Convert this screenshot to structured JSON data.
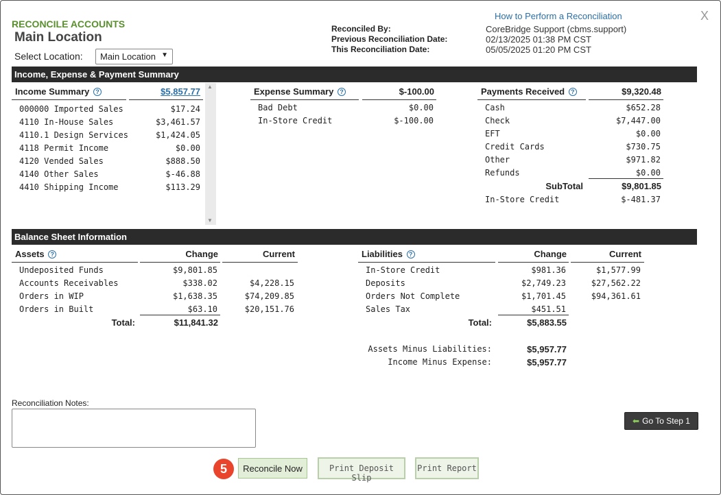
{
  "header": {
    "section_title": "RECONCILE ACCOUNTS",
    "location_title": "Main Location",
    "select_location_label": "Select Location:",
    "select_location_value": "Main Location",
    "help_link": "How to Perform a Reconciliation",
    "close_symbol": "X",
    "reconciled_by_label": "Reconciled By:",
    "reconciled_by_value": "CoreBridge Support (cbms.support)",
    "prev_date_label": "Previous Reconciliation Date:",
    "prev_date_value": "02/13/2025 01:38 PM CST",
    "this_date_label": "This Reconciliation Date:",
    "this_date_value": "05/05/2025 01:20 PM CST"
  },
  "summary": {
    "bar_title": "Income, Expense & Payment Summary",
    "income": {
      "title": "Income Summary",
      "total": "$5,857.77",
      "rows": [
        {
          "label": "000000 Imported Sales",
          "value": "$17.24"
        },
        {
          "label": "4110 In-House Sales",
          "value": "$3,461.57"
        },
        {
          "label": "4110.1 Design Services",
          "value": "$1,424.05"
        },
        {
          "label": "4118 Permit Income",
          "value": "$0.00"
        },
        {
          "label": "4120 Vended Sales",
          "value": "$888.50"
        },
        {
          "label": "4140 Other Sales",
          "value": "$-46.88"
        },
        {
          "label": "4410 Shipping Income",
          "value": "$113.29"
        }
      ]
    },
    "expense": {
      "title": "Expense Summary",
      "total": "$-100.00",
      "rows": [
        {
          "label": "Bad Debt",
          "value": "$0.00"
        },
        {
          "label": "In-Store Credit",
          "value": "$-100.00"
        }
      ]
    },
    "payments": {
      "title": "Payments Received",
      "total": "$9,320.48",
      "rows": [
        {
          "label": "Cash",
          "value": "$652.28"
        },
        {
          "label": "Check",
          "value": "$7,447.00"
        },
        {
          "label": "EFT",
          "value": "$0.00"
        },
        {
          "label": "Credit Cards",
          "value": "$730.75"
        },
        {
          "label": "Other",
          "value": "$971.82"
        },
        {
          "label": "Refunds",
          "value": "$0.00"
        }
      ],
      "subtotal_label": "SubTotal",
      "subtotal_value": "$9,801.85",
      "instore_label": "In-Store Credit",
      "instore_value": "$-481.37"
    }
  },
  "balance": {
    "bar_title": "Balance Sheet Information",
    "change_header": "Change",
    "current_header": "Current",
    "total_label": "Total:",
    "assets": {
      "title": "Assets",
      "rows": [
        {
          "label": "Undeposited Funds",
          "change": "$9,801.85",
          "current": ""
        },
        {
          "label": "Accounts Receivables",
          "change": "$338.02",
          "current": "$4,228.15"
        },
        {
          "label": "Orders in WIP",
          "change": "$1,638.35",
          "current": "$74,209.85"
        },
        {
          "label": "Orders in Built",
          "change": "$63.10",
          "current": "$20,151.76"
        }
      ],
      "total": "$11,841.32"
    },
    "liabilities": {
      "title": "Liabilities",
      "rows": [
        {
          "label": "In-Store Credit",
          "change": "$981.36",
          "current": "$1,577.99"
        },
        {
          "label": "Deposits",
          "change": "$2,749.23",
          "current": "$27,562.22"
        },
        {
          "label": "Orders Not Complete",
          "change": "$1,701.45",
          "current": "$94,361.61"
        },
        {
          "label": "Sales Tax",
          "change": "$451.51",
          "current": ""
        }
      ],
      "total": "$5,883.55"
    },
    "assets_minus_label": "Assets Minus Liabilities:",
    "assets_minus_value": "$5,957.77",
    "income_minus_label": "Income Minus Expense:",
    "income_minus_value": "$5,957.77"
  },
  "notes": {
    "label": "Reconciliation Notes:",
    "value": ""
  },
  "actions": {
    "step_badge": "5",
    "go_step_label": "Go To Step 1",
    "reconcile_label": "Reconcile Now",
    "print_deposit_label": "Print Deposit Slip",
    "print_report_label": "Print Report"
  },
  "colors": {
    "accent_green": "#5a8f2e",
    "bar_dark": "#2b2b2b",
    "link_blue": "#2a6fa8",
    "badge_red": "#e8452c"
  }
}
